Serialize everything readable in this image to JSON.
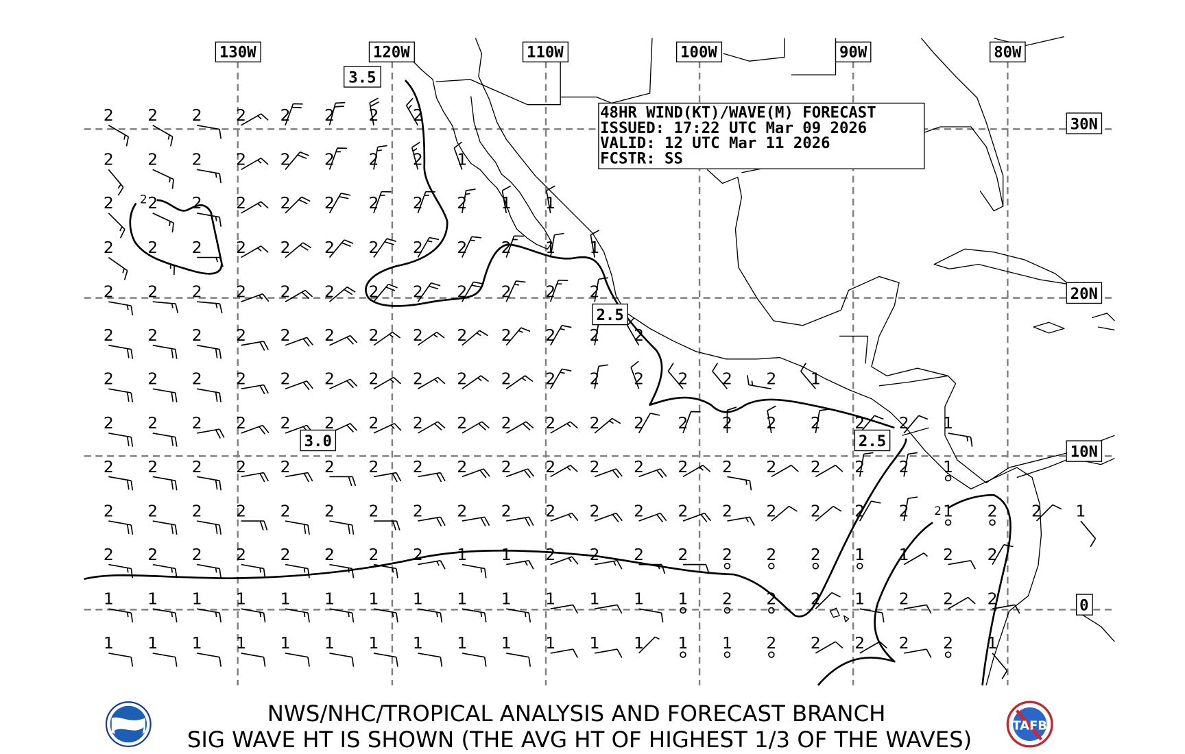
{
  "title_box": {
    "line1": "48HR WIND(KT)/WAVE(M) FORECAST",
    "line2": "ISSUED: 17:22 UTC Mar 09 2026",
    "line3": "VALID: 12 UTC Mar 11 2026",
    "line4": "FCSTR: SS"
  },
  "longitude_labels": [
    "130W",
    "120W",
    "110W",
    "100W",
    "90W",
    "80W"
  ],
  "latitude_labels": [
    "30N",
    "20N",
    "10N",
    "0"
  ],
  "contour_labels": [
    "3.5",
    "3.0",
    "2.5",
    "2.5",
    "2",
    "2"
  ],
  "footer": {
    "line1": "NWS/NHC/TROPICAL ANALYSIS AND FORECAST BRANCH",
    "line2": "SIG WAVE HT IS SHOWN (THE AVG HT OF HIGHEST 1/3 OF THE WAVES)"
  },
  "logos": {
    "left": "NOAA",
    "right": "TAFB"
  },
  "legend_units": {
    "wind": "kt",
    "wave": "m"
  },
  "grid_points": [
    {
      "heights": [
        "2",
        "2",
        "2",
        "2",
        "2",
        "2",
        "2",
        "2"
      ],
      "wind": [
        "120/15",
        "120/15",
        "100/10",
        "60/15",
        "20/20",
        "15/20",
        "350/20",
        "330/15"
      ]
    },
    {
      "heights": [
        "2",
        "2",
        "2",
        "2",
        "2",
        "2",
        "2",
        "2",
        "1"
      ],
      "wind": [
        "140/15",
        "115/15",
        "100/15",
        "60/15",
        "40/20",
        "20/15",
        "10/15",
        "345/15",
        "340/10"
      ]
    },
    {
      "heights": [
        "2",
        "2",
        "2",
        "2",
        "2",
        "2",
        "2",
        "2",
        "2",
        "1",
        "1"
      ],
      "wind": [
        "135/15",
        "115/15",
        "100/15",
        "60/15",
        "45/20",
        "30/20",
        "20/15",
        "20/15",
        "10/15",
        "350/10",
        "350/10"
      ]
    },
    {
      "heights": [
        "2",
        "2",
        "2",
        "2",
        "2",
        "2",
        "2",
        "2",
        "2",
        "2",
        "1",
        "1"
      ],
      "wind": [
        "125/15",
        "110/15",
        "90/15",
        "60/15",
        "50/20",
        "40/20",
        "35/20",
        "30/15",
        "25/15",
        "20/15",
        "10/10",
        "350/10"
      ]
    },
    {
      "heights": [
        "2",
        "2",
        "2",
        "2",
        "2",
        "2",
        "2",
        "2",
        "2",
        "2",
        "2",
        "2"
      ],
      "wind": [
        "100/15",
        "95/15",
        "95/15",
        "70/15",
        "60/20",
        "50/20",
        "40/20",
        "35/20",
        "30/20",
        "25/15",
        "20/15",
        "10/10"
      ]
    },
    {
      "heights": [
        "2",
        "2",
        "2",
        "2",
        "2",
        "2",
        "2",
        "2",
        "2",
        "2",
        "2",
        "2",
        "2"
      ],
      "wind": [
        "100/20",
        "100/20",
        "100/20",
        "80/20",
        "70/20",
        "65/20",
        "55/15",
        "55/15",
        "50/15",
        "40/15",
        "30/15",
        "10/10",
        "330/10"
      ]
    },
    {
      "heights": [
        "2",
        "2",
        "2",
        "2",
        "2",
        "2",
        "2",
        "2",
        "2",
        "2",
        "2",
        "2",
        "2",
        "2",
        "2",
        "2",
        "1"
      ],
      "wind": [
        "100/20",
        "100/20",
        "100/20",
        "80/20",
        "70/20",
        "65/20",
        "60/15",
        "60/15",
        "55/15",
        "55/15",
        "30/15",
        "10/10",
        "340/10",
        "320/10",
        "320/10",
        "280/15",
        "320/10"
      ]
    },
    {
      "heights": [
        "2",
        "2",
        "2",
        "2",
        "2",
        "2",
        "2",
        "2",
        "2",
        "2",
        "2",
        "2",
        "2",
        "2",
        "2",
        "2",
        "2",
        "2",
        "2",
        "1"
      ],
      "wind": [
        "100/20",
        "100/20",
        "80/20",
        "70/20",
        "70/20",
        "65/20",
        "65/15",
        "60/20",
        "60/20",
        "60/20",
        "60/15",
        "50/15",
        "30/10",
        "20/10",
        "0/10",
        "350/10",
        "10/10",
        "40/10",
        "40/10",
        "100/15"
      ]
    },
    {
      "heights": [
        "2",
        "2",
        "2",
        "2",
        "2",
        "2",
        "2",
        "2",
        "2",
        "2",
        "2",
        "2",
        "2",
        "2",
        "2",
        "2",
        "2",
        "2",
        "2",
        "1"
      ],
      "wind": [
        "100/20",
        "100/20",
        "100/20",
        "80/20",
        "80/20",
        "90/20",
        "80/20",
        "80/20",
        "70/20",
        "70/20",
        "60/15",
        "70/20",
        "70/20",
        "60/15",
        "100/15",
        "60/10",
        "60/10",
        "10/10",
        "10/10",
        "0/0"
      ]
    },
    {
      "heights": [
        "2",
        "2",
        "2",
        "2",
        "2",
        "2",
        "2",
        "2",
        "2",
        "2",
        "2",
        "2",
        "2",
        "2",
        "2",
        "2",
        "2",
        "2",
        "2",
        "1",
        "2",
        "2",
        "1"
      ],
      "wind": [
        "100/20",
        "100/20",
        "100/20",
        "90/20",
        "100/20",
        "100/20",
        "90/20",
        "80/20",
        "80/20",
        "80/20",
        "70/15",
        "70/20",
        "70/20",
        "70/20",
        "80/15",
        "50/10",
        "50/10",
        "30/10",
        "10/10",
        "0/0",
        "0/0",
        "45/10",
        "140/10"
      ]
    },
    {
      "heights": [
        "2",
        "2",
        "2",
        "2",
        "2",
        "2",
        "2",
        "2",
        "1",
        "1",
        "2",
        "2",
        "2",
        "2",
        "2",
        "2",
        "2",
        "1",
        "1",
        "2",
        "2"
      ],
      "wind": [
        "100/15",
        "100/15",
        "100/15",
        "100/15",
        "100/15",
        "100/15",
        "100/15",
        "80/15",
        "100/15",
        "80/15",
        "70/15",
        "80/15",
        "90/15",
        "90/10",
        "0/0",
        "0/0",
        "0/0",
        "0/0",
        "60/5",
        "80/10",
        "30/10"
      ]
    },
    {
      "heights": [
        "1",
        "1",
        "1",
        "1",
        "1",
        "1",
        "1",
        "1",
        "1",
        "1",
        "1",
        "1",
        "1",
        "1",
        "2",
        "2",
        "2",
        "1",
        "2",
        "2",
        "2"
      ],
      "wind": [
        "100/15",
        "100/15",
        "100/15",
        "100/15",
        "100/15",
        "100/15",
        "100/15",
        "100/15",
        "100/15",
        "100/15",
        "80/10",
        "80/10",
        "100/10",
        "0/0",
        "0/0",
        "0/0",
        "45/10",
        "100/10",
        "80/10",
        "60/10",
        "80/10"
      ]
    },
    {
      "heights": [
        "1",
        "1",
        "1",
        "1",
        "1",
        "1",
        "1",
        "1",
        "1",
        "1",
        "1",
        "1",
        "1",
        "1",
        "1",
        "2",
        "2",
        "2",
        "2",
        "2",
        "1"
      ],
      "wind": [
        "100/10",
        "100/10",
        "100/10",
        "100/10",
        "100/10",
        "100/10",
        "100/10",
        "100/10",
        "100/10",
        "100/10",
        "80/10",
        "80/10",
        "45/5",
        "0/0",
        "0/0",
        "0/0",
        "60/10",
        "60/10",
        "80/10",
        "0/0",
        "140/10"
      ]
    }
  ]
}
